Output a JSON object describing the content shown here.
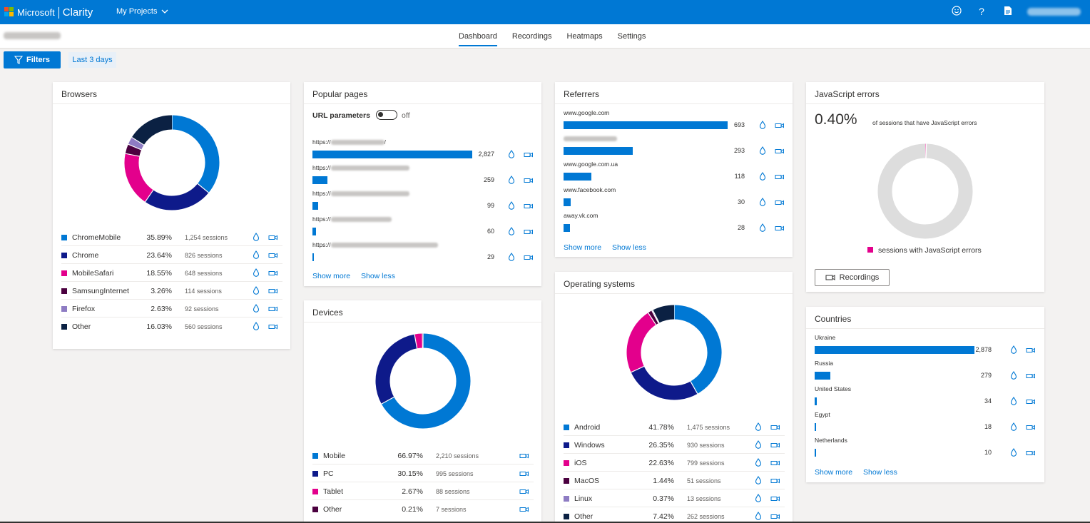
{
  "topbar": {
    "brand": "Microsoft",
    "product": "Clarity",
    "projects": "My Projects"
  },
  "tabs": [
    {
      "label": "Dashboard",
      "active": true
    },
    {
      "label": "Recordings"
    },
    {
      "label": "Heatmaps"
    },
    {
      "label": "Settings"
    }
  ],
  "filters": {
    "label": "Filters",
    "range": "Last 3 days"
  },
  "browsers": {
    "title": "Browsers",
    "rows": [
      {
        "name": "ChromeMobile",
        "pct": "35.89%",
        "sessions": "1,254 sessions",
        "color": "#0078d4",
        "value": 35.89
      },
      {
        "name": "Chrome",
        "pct": "23.64%",
        "sessions": "826 sessions",
        "color": "#0e1a8a",
        "value": 23.64
      },
      {
        "name": "MobileSafari",
        "pct": "18.55%",
        "sessions": "648 sessions",
        "color": "#e3008c",
        "value": 18.55
      },
      {
        "name": "SamsungInternet",
        "pct": "3.26%",
        "sessions": "114 sessions",
        "color": "#4b003f",
        "value": 3.26
      },
      {
        "name": "Firefox",
        "pct": "2.63%",
        "sessions": "92 sessions",
        "color": "#8e7cc3",
        "value": 2.63
      },
      {
        "name": "Other",
        "pct": "16.03%",
        "sessions": "560 sessions",
        "color": "#0b2143",
        "value": 16.03
      }
    ]
  },
  "popular": {
    "title": "Popular pages",
    "url_params": "URL parameters",
    "toggle": "off",
    "rows": [
      {
        "prefix": "https://",
        "suffix": "/",
        "count": "2,827",
        "value": 2827
      },
      {
        "prefix": "https://",
        "suffix": "",
        "count": "259",
        "value": 259
      },
      {
        "prefix": "https://",
        "suffix": "",
        "count": "99",
        "value": 99
      },
      {
        "prefix": "https://",
        "suffix": "",
        "count": "60",
        "value": 60
      },
      {
        "prefix": "https://",
        "suffix": "",
        "count": "29",
        "value": 29
      }
    ],
    "show_more": "Show more",
    "show_less": "Show less"
  },
  "devices": {
    "title": "Devices",
    "rows": [
      {
        "name": "Mobile",
        "pct": "66.97%",
        "sessions": "2,210 sessions",
        "color": "#0078d4",
        "value": 66.97
      },
      {
        "name": "PC",
        "pct": "30.15%",
        "sessions": "995 sessions",
        "color": "#0e1a8a",
        "value": 30.15
      },
      {
        "name": "Tablet",
        "pct": "2.67%",
        "sessions": "88 sessions",
        "color": "#e3008c",
        "value": 2.67
      },
      {
        "name": "Other",
        "pct": "0.21%",
        "sessions": "7 sessions",
        "color": "#4b003f",
        "value": 0.21
      }
    ]
  },
  "referrers": {
    "title": "Referrers",
    "rows": [
      {
        "label": "www.google.com",
        "count": "693",
        "value": 693
      },
      {
        "label": "",
        "count": "293",
        "value": 293
      },
      {
        "label": "www.google.com.ua",
        "count": "118",
        "value": 118
      },
      {
        "label": "www.facebook.com",
        "count": "30",
        "value": 30
      },
      {
        "label": "away.vk.com",
        "count": "28",
        "value": 28
      }
    ],
    "show_more": "Show more",
    "show_less": "Show less"
  },
  "os": {
    "title": "Operating systems",
    "rows": [
      {
        "name": "Android",
        "pct": "41.78%",
        "sessions": "1,475 sessions",
        "color": "#0078d4",
        "value": 41.78
      },
      {
        "name": "Windows",
        "pct": "26.35%",
        "sessions": "930 sessions",
        "color": "#0e1a8a",
        "value": 26.35
      },
      {
        "name": "iOS",
        "pct": "22.63%",
        "sessions": "799 sessions",
        "color": "#e3008c",
        "value": 22.63
      },
      {
        "name": "MacOS",
        "pct": "1.44%",
        "sessions": "51 sessions",
        "color": "#4b003f",
        "value": 1.44
      },
      {
        "name": "Linux",
        "pct": "0.37%",
        "sessions": "13 sessions",
        "color": "#8e7cc3",
        "value": 0.37
      },
      {
        "name": "Other",
        "pct": "7.42%",
        "sessions": "262 sessions",
        "color": "#0b2143",
        "value": 7.42
      }
    ]
  },
  "jserrors": {
    "title": "JavaScript errors",
    "value": "0.40%",
    "value_num": 0.4,
    "caption": "of sessions that have JavaScript errors",
    "legend": "sessions with JavaScript errors",
    "legend_color": "#e3008c",
    "recordings": "Recordings"
  },
  "countries": {
    "title": "Countries",
    "rows": [
      {
        "label": "Ukraine",
        "count": "2,878",
        "value": 2878
      },
      {
        "label": "Russia",
        "count": "279",
        "value": 279
      },
      {
        "label": "United States",
        "count": "34",
        "value": 34
      },
      {
        "label": "Egypt",
        "count": "18",
        "value": 18
      },
      {
        "label": "Netherlands",
        "count": "10",
        "value": 10
      }
    ],
    "show_more": "Show more",
    "show_less": "Show less"
  }
}
